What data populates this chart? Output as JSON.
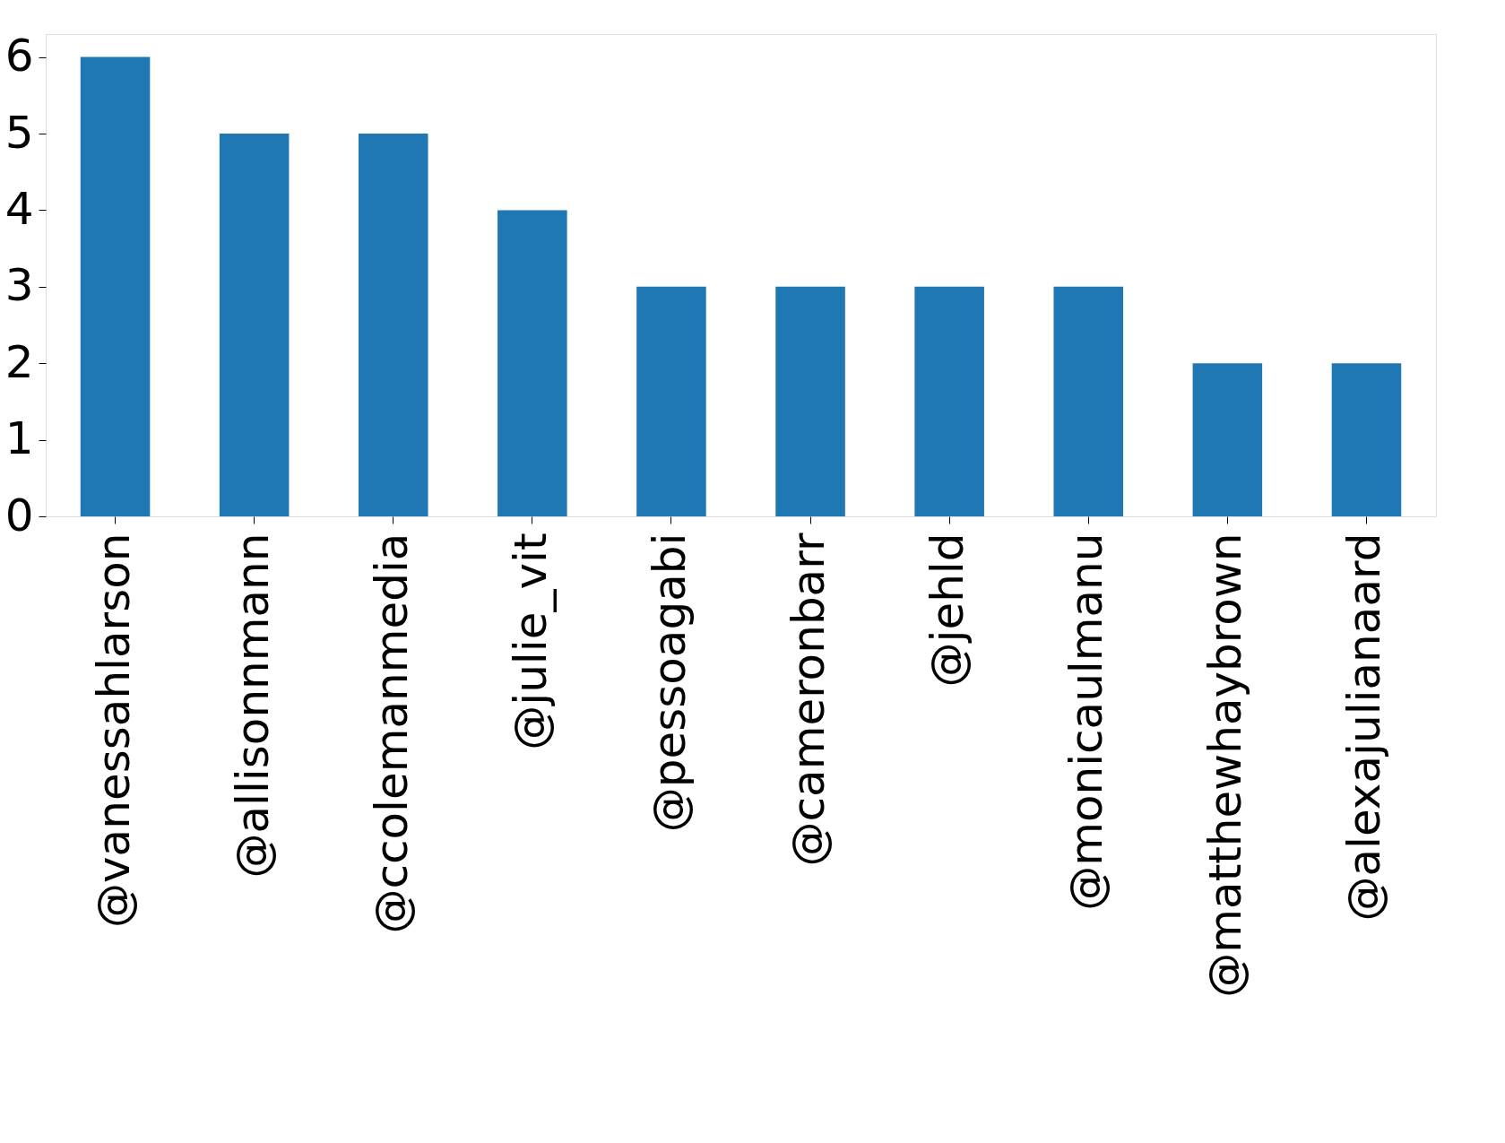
{
  "chart_data": {
    "type": "bar",
    "categories": [
      "@vanessahlarson",
      "@allisonnmann",
      "@ccolemanmedia",
      "@julie_vit",
      "@pessoagabi",
      "@cameronbarr",
      "@jehld",
      "@monicaulmanu",
      "@matthewhaybrown",
      "@alexajulianaard"
    ],
    "values": [
      6,
      5,
      5,
      4,
      3,
      3,
      3,
      3,
      2,
      2
    ],
    "color": "#1f77b4",
    "ylim": [
      0,
      6.3
    ],
    "yticks": [
      0,
      1,
      2,
      3,
      4,
      5,
      6
    ],
    "grid": false
  }
}
